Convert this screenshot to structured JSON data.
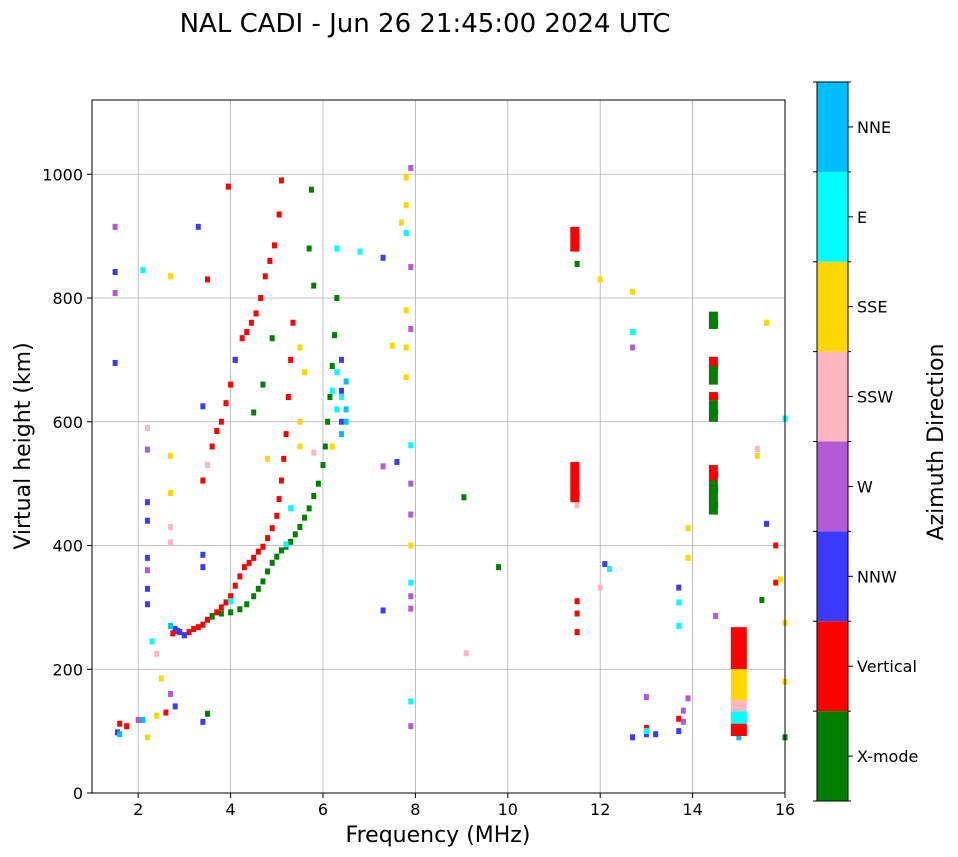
{
  "chart_data": {
    "type": "scatter",
    "title": "NAL CADI - Jun 26 21:45:00 2024 UTC",
    "xlabel": "Frequency (MHz)",
    "ylabel": "Virtual height (km)",
    "xlim": [
      1,
      16
    ],
    "ylim": [
      0,
      1120
    ],
    "xticks": [
      2,
      4,
      6,
      8,
      10,
      12,
      14,
      16
    ],
    "yticks": [
      0,
      200,
      400,
      600,
      800,
      1000
    ],
    "grid": true,
    "colorbar": {
      "label": "Azimuth Direction",
      "categories": [
        {
          "name": "X-mode",
          "color": "#008000"
        },
        {
          "name": "Vertical",
          "color": "#ff0000"
        },
        {
          "name": "NNW",
          "color": "#3b3bff"
        },
        {
          "name": "W",
          "color": "#b45ad6"
        },
        {
          "name": "SSW",
          "color": "#ffb6c1"
        },
        {
          "name": "SSE",
          "color": "#ffd700"
        },
        {
          "name": "E",
          "color": "#00ffff"
        },
        {
          "name": "NNE",
          "color": "#00bfff"
        }
      ]
    },
    "series": [
      {
        "name": "Vertical",
        "color": "#ff0000",
        "points": [
          [
            1.6,
            112
          ],
          [
            1.75,
            108
          ],
          [
            2.05,
            118
          ],
          [
            2.6,
            130
          ],
          [
            2.75,
            258
          ],
          [
            2.85,
            262
          ],
          [
            3.0,
            255
          ],
          [
            3.1,
            260
          ],
          [
            3.2,
            265
          ],
          [
            3.3,
            268
          ],
          [
            3.4,
            272
          ],
          [
            3.5,
            280
          ],
          [
            3.6,
            286
          ],
          [
            3.7,
            292
          ],
          [
            3.8,
            300
          ],
          [
            3.9,
            308
          ],
          [
            4.0,
            318
          ],
          [
            4.1,
            335
          ],
          [
            4.2,
            350
          ],
          [
            4.3,
            365
          ],
          [
            4.4,
            372
          ],
          [
            4.5,
            380
          ],
          [
            4.6,
            390
          ],
          [
            4.7,
            398
          ],
          [
            4.8,
            412
          ],
          [
            4.9,
            428
          ],
          [
            5.0,
            448
          ],
          [
            5.05,
            475
          ],
          [
            5.1,
            505
          ],
          [
            5.15,
            540
          ],
          [
            5.2,
            580
          ],
          [
            5.25,
            640
          ],
          [
            5.3,
            700
          ],
          [
            5.35,
            760
          ],
          [
            3.4,
            505
          ],
          [
            3.6,
            560
          ],
          [
            3.7,
            585
          ],
          [
            3.8,
            600
          ],
          [
            3.9,
            630
          ],
          [
            4.0,
            660
          ],
          [
            4.1,
            700
          ],
          [
            4.25,
            735
          ],
          [
            4.35,
            745
          ],
          [
            4.45,
            760
          ],
          [
            4.55,
            775
          ],
          [
            4.65,
            800
          ],
          [
            4.75,
            835
          ],
          [
            4.85,
            860
          ],
          [
            4.95,
            885
          ],
          [
            5.05,
            935
          ],
          [
            5.1,
            990
          ],
          [
            3.95,
            980
          ],
          [
            3.5,
            830
          ],
          [
            11.5,
            900
          ],
          [
            11.5,
            485
          ],
          [
            11.5,
            260
          ],
          [
            11.5,
            290
          ],
          [
            11.5,
            310
          ],
          [
            14.5,
            690
          ],
          [
            14.5,
            640
          ],
          [
            14.5,
            515
          ],
          [
            14.5,
            465
          ],
          [
            15.0,
            240
          ],
          [
            15.0,
            100
          ],
          [
            15.8,
            400
          ],
          [
            15.8,
            340
          ],
          [
            13.7,
            120
          ],
          [
            13.0,
            105
          ]
        ]
      },
      {
        "name": "X-mode",
        "color": "#008000",
        "points": [
          [
            3.6,
            285
          ],
          [
            3.8,
            290
          ],
          [
            4.0,
            292
          ],
          [
            4.2,
            297
          ],
          [
            4.35,
            305
          ],
          [
            4.5,
            318
          ],
          [
            4.6,
            330
          ],
          [
            4.7,
            342
          ],
          [
            4.8,
            358
          ],
          [
            4.9,
            372
          ],
          [
            5.0,
            382
          ],
          [
            5.1,
            392
          ],
          [
            5.2,
            398
          ],
          [
            5.3,
            406
          ],
          [
            5.4,
            418
          ],
          [
            5.5,
            430
          ],
          [
            5.6,
            445
          ],
          [
            5.7,
            460
          ],
          [
            5.8,
            480
          ],
          [
            5.9,
            500
          ],
          [
            6.0,
            530
          ],
          [
            6.05,
            560
          ],
          [
            6.1,
            600
          ],
          [
            6.15,
            640
          ],
          [
            6.2,
            690
          ],
          [
            6.25,
            740
          ],
          [
            6.3,
            800
          ],
          [
            5.8,
            820
          ],
          [
            5.7,
            880
          ],
          [
            5.75,
            975
          ],
          [
            4.9,
            735
          ],
          [
            4.7,
            660
          ],
          [
            4.5,
            615
          ],
          [
            3.5,
            128
          ],
          [
            14.5,
            760
          ],
          [
            14.5,
            615
          ],
          [
            14.5,
            490
          ],
          [
            9.05,
            478
          ],
          [
            9.8,
            365
          ],
          [
            15.5,
            312
          ],
          [
            16.0,
            90
          ],
          [
            11.5,
            855
          ]
        ]
      },
      {
        "name": "NNW",
        "color": "#3b3bff",
        "points": [
          [
            1.5,
            695
          ],
          [
            1.5,
            842
          ],
          [
            1.55,
            98
          ],
          [
            2.2,
            470
          ],
          [
            2.2,
            440
          ],
          [
            2.2,
            380
          ],
          [
            2.2,
            330
          ],
          [
            2.2,
            305
          ],
          [
            2.8,
            265
          ],
          [
            2.9,
            260
          ],
          [
            3.0,
            255
          ],
          [
            3.4,
            385
          ],
          [
            3.4,
            365
          ],
          [
            3.4,
            625
          ],
          [
            3.4,
            115
          ],
          [
            3.3,
            915
          ],
          [
            2.8,
            140
          ],
          [
            4.1,
            700
          ],
          [
            6.4,
            650
          ],
          [
            6.4,
            700
          ],
          [
            6.4,
            600
          ],
          [
            7.6,
            535
          ],
          [
            7.3,
            295
          ],
          [
            7.3,
            865
          ],
          [
            12.1,
            370
          ],
          [
            12.7,
            90
          ],
          [
            13.0,
            95
          ],
          [
            13.2,
            95
          ],
          [
            13.7,
            332
          ],
          [
            13.7,
            100
          ],
          [
            15.6,
            435
          ]
        ]
      },
      {
        "name": "W",
        "color": "#b45ad6",
        "points": [
          [
            1.5,
            915
          ],
          [
            1.5,
            808
          ],
          [
            2.0,
            118
          ],
          [
            2.2,
            555
          ],
          [
            2.2,
            360
          ],
          [
            2.7,
            160
          ],
          [
            7.9,
            1010
          ],
          [
            7.9,
            850
          ],
          [
            7.9,
            750
          ],
          [
            7.9,
            500
          ],
          [
            7.9,
            450
          ],
          [
            7.9,
            318
          ],
          [
            7.9,
            298
          ],
          [
            7.9,
            108
          ],
          [
            12.7,
            720
          ],
          [
            13.0,
            155
          ],
          [
            13.8,
            133
          ],
          [
            13.8,
            115
          ],
          [
            13.9,
            153
          ],
          [
            14.5,
            286
          ],
          [
            7.3,
            528
          ]
        ]
      },
      {
        "name": "SSW",
        "color": "#ffb6c1",
        "points": [
          [
            2.2,
            590
          ],
          [
            2.7,
            430
          ],
          [
            2.7,
            405
          ],
          [
            3.5,
            530
          ],
          [
            2.4,
            225
          ],
          [
            5.8,
            550
          ],
          [
            9.1,
            226
          ],
          [
            12.0,
            332
          ],
          [
            11.5,
            465
          ],
          [
            15.4,
            556
          ],
          [
            15.0,
            145
          ]
        ]
      },
      {
        "name": "SSE",
        "color": "#ffd700",
        "points": [
          [
            2.4,
            125
          ],
          [
            2.5,
            185
          ],
          [
            2.2,
            90
          ],
          [
            2.7,
            545
          ],
          [
            2.7,
            485
          ],
          [
            2.7,
            835
          ],
          [
            4.8,
            540
          ],
          [
            5.5,
            720
          ],
          [
            5.5,
            600
          ],
          [
            5.6,
            680
          ],
          [
            5.5,
            560
          ],
          [
            6.2,
            560
          ],
          [
            7.8,
            995
          ],
          [
            7.8,
            950
          ],
          [
            7.8,
            780
          ],
          [
            7.8,
            720
          ],
          [
            7.8,
            672
          ],
          [
            7.7,
            922
          ],
          [
            7.5,
            723
          ],
          [
            7.9,
            400
          ],
          [
            12.0,
            830
          ],
          [
            12.7,
            810
          ],
          [
            13.9,
            428
          ],
          [
            13.9,
            380
          ],
          [
            15.0,
            185
          ],
          [
            15.6,
            760
          ],
          [
            15.4,
            545
          ],
          [
            16.0,
            275
          ],
          [
            16.0,
            180
          ],
          [
            15.9,
            345
          ]
        ]
      },
      {
        "name": "E",
        "color": "#00ffff",
        "points": [
          [
            2.1,
            845
          ],
          [
            2.3,
            245
          ],
          [
            4.0,
            310
          ],
          [
            5.3,
            460
          ],
          [
            5.2,
            402
          ],
          [
            6.2,
            650
          ],
          [
            6.3,
            680
          ],
          [
            6.3,
            620
          ],
          [
            6.4,
            640
          ],
          [
            6.3,
            880
          ],
          [
            6.8,
            875
          ],
          [
            7.8,
            905
          ],
          [
            7.9,
            562
          ],
          [
            7.9,
            340
          ],
          [
            7.9,
            148
          ],
          [
            12.2,
            362
          ],
          [
            12.7,
            745
          ],
          [
            13.0,
            100
          ],
          [
            13.7,
            270
          ],
          [
            13.7,
            308
          ],
          [
            15.0,
            125
          ],
          [
            16.0,
            605
          ]
        ]
      },
      {
        "name": "NNE",
        "color": "#00bfff",
        "points": [
          [
            1.6,
            95
          ],
          [
            2.1,
            118
          ],
          [
            2.7,
            270
          ],
          [
            6.5,
            620
          ],
          [
            6.5,
            665
          ],
          [
            6.5,
            600
          ],
          [
            6.4,
            580
          ],
          [
            11.5,
            885
          ],
          [
            15.0,
            90
          ]
        ]
      }
    ],
    "bars": [
      {
        "category": "Vertical",
        "color": "#ff0000",
        "x": 11.45,
        "y0": 470,
        "y1": 535
      },
      {
        "category": "Vertical",
        "color": "#ff0000",
        "x": 11.45,
        "y0": 875,
        "y1": 915
      },
      {
        "category": "X-mode",
        "color": "#008000",
        "x": 14.45,
        "y0": 750,
        "y1": 778
      },
      {
        "category": "X-mode",
        "color": "#008000",
        "x": 14.45,
        "y0": 600,
        "y1": 635
      },
      {
        "category": "X-mode",
        "color": "#008000",
        "x": 14.45,
        "y0": 660,
        "y1": 690
      },
      {
        "category": "Vertical",
        "color": "#ff0000",
        "x": 14.45,
        "y0": 690,
        "y1": 705
      },
      {
        "category": "Vertical",
        "color": "#ff0000",
        "x": 14.45,
        "y0": 635,
        "y1": 648
      },
      {
        "category": "X-mode",
        "color": "#008000",
        "x": 14.45,
        "y0": 450,
        "y1": 505
      },
      {
        "category": "Vertical",
        "color": "#ff0000",
        "x": 14.45,
        "y0": 505,
        "y1": 530
      },
      {
        "category": "Vertical",
        "color": "#ff0000",
        "x": 15.0,
        "y0": 200,
        "y1": 268
      },
      {
        "category": "SSE",
        "color": "#ffd700",
        "x": 15.0,
        "y0": 150,
        "y1": 200
      },
      {
        "category": "SSW",
        "color": "#ffb6c1",
        "x": 15.0,
        "y0": 132,
        "y1": 150
      },
      {
        "category": "E",
        "color": "#00ffff",
        "x": 15.0,
        "y0": 112,
        "y1": 132
      },
      {
        "category": "Vertical",
        "color": "#ff0000",
        "x": 15.0,
        "y0": 92,
        "y1": 112
      }
    ]
  }
}
